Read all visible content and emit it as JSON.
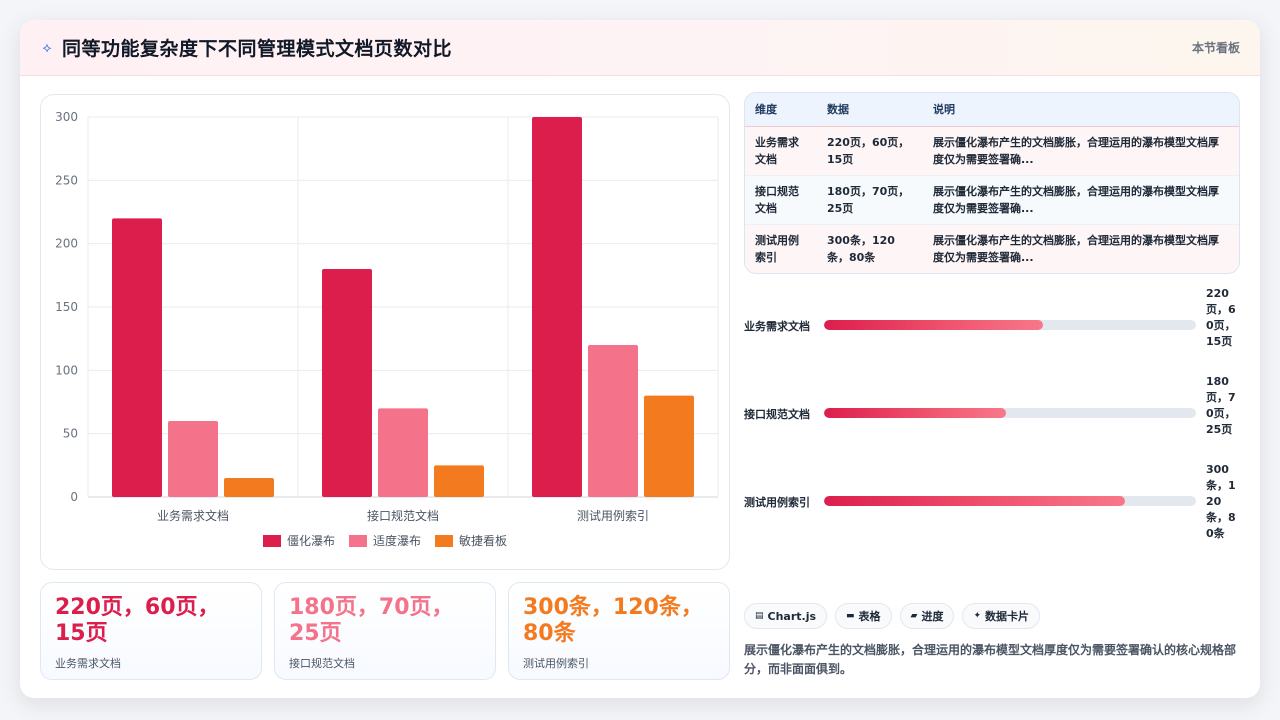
{
  "header": {
    "icon": "sparkle-icon",
    "title": "同等功能复杂度下不同管理模式文档页数对比",
    "section_link": "本节看板"
  },
  "colors": {
    "series_1": "#dc1e4c",
    "series_2": "#f4728a",
    "series_3": "#f47a1f"
  },
  "chart_data": {
    "type": "bar",
    "categories": [
      "业务需求文档",
      "接口规范文档",
      "测试用例索引"
    ],
    "series": [
      {
        "name": "僵化瀑布",
        "values": [
          220,
          180,
          300
        ]
      },
      {
        "name": "适度瀑布",
        "values": [
          60,
          70,
          120
        ]
      },
      {
        "name": "敏捷看板",
        "values": [
          15,
          25,
          80
        ]
      }
    ],
    "ylim": [
      0,
      300
    ],
    "yticks": [
      0,
      50,
      100,
      150,
      200,
      250,
      300
    ],
    "grid": true,
    "legend": "bottom"
  },
  "stats": [
    {
      "value": "220页，60页，15页",
      "label": "业务需求文档",
      "color": "#dc1e4c"
    },
    {
      "value": "180页，70页，25页",
      "label": "接口规范文档",
      "color": "#f4728a"
    },
    {
      "value": "300条，120条，80条",
      "label": "测试用例索引",
      "color": "#f47a1f"
    }
  ],
  "table": {
    "headers": [
      "维度",
      "数据",
      "说明"
    ],
    "rows": [
      {
        "dim": "业务需求文档",
        "data": "220页，60页，15页",
        "desc": "展示僵化瀑布产生的文档膨胀，合理运用的瀑布模型文档厚度仅为需要签署确..."
      },
      {
        "dim": "接口规范文档",
        "data": "180页，70页，25页",
        "desc": "展示僵化瀑布产生的文档膨胀，合理运用的瀑布模型文档厚度仅为需要签署确..."
      },
      {
        "dim": "测试用例索引",
        "data": "300条，120条，80条",
        "desc": "展示僵化瀑布产生的文档膨胀，合理运用的瀑布模型文档厚度仅为需要签署确..."
      }
    ]
  },
  "progress": [
    {
      "label": "业务需求文档",
      "value": "220页，60页，15页",
      "fraction": 0.59
    },
    {
      "label": "接口规范文档",
      "value": "180页，70页，25页",
      "fraction": 0.49
    },
    {
      "label": "测试用例索引",
      "value": "300条，120条，80条",
      "fraction": 0.81
    }
  ],
  "tags": [
    {
      "icon": "chart-icon",
      "glyph": "▤",
      "label": "Chart.js"
    },
    {
      "icon": "table-icon",
      "glyph": "▬",
      "label": "表格"
    },
    {
      "icon": "progress-icon",
      "glyph": "▰",
      "label": "进度"
    },
    {
      "icon": "card-icon",
      "glyph": "✦",
      "label": "数据卡片"
    }
  ],
  "footnote": "展示僵化瀑布产生的文档膨胀，合理运用的瀑布模型文档厚度仅为需要签署确认的核心规格部分，而非面面俱到。"
}
